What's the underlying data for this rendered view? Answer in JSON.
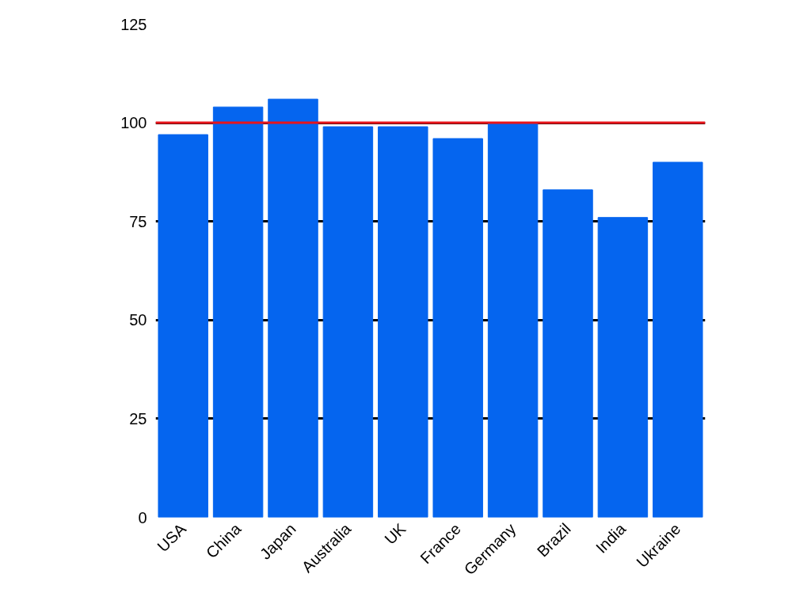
{
  "chart_data": {
    "type": "bar",
    "categories": [
      "USA",
      "China",
      "Japan",
      "Australia",
      "UK",
      "France",
      "Germany",
      "Brazil",
      "India",
      "Ukraine"
    ],
    "values": [
      97,
      104,
      106,
      99,
      99,
      96,
      100,
      83,
      76,
      90
    ],
    "color": "#0565ef",
    "ylim": [
      0,
      125
    ],
    "yticks": [
      0,
      25,
      50,
      75,
      100,
      125
    ],
    "grid": "y",
    "ref_lines": [
      {
        "axis": "y",
        "value": 100,
        "color": "#e8141b"
      }
    ]
  }
}
